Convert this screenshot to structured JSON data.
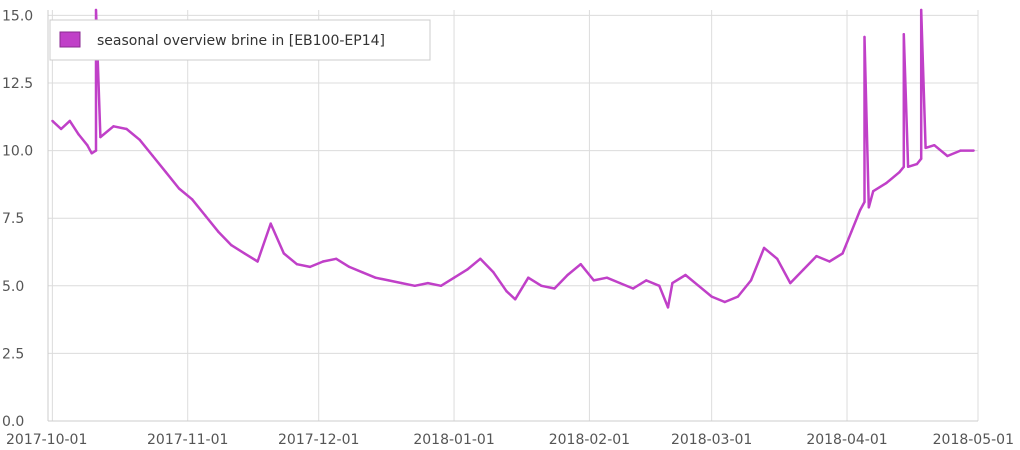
{
  "chart_data": {
    "type": "line",
    "series": [
      {
        "name": "seasonal overview brine in [EB100-EP14]",
        "color": "#c040c8",
        "x": [
          "2017-10-01",
          "2017-10-03",
          "2017-10-05",
          "2017-10-07",
          "2017-10-09",
          "2017-10-10",
          "2017-10-11",
          "2017-10-11",
          "2017-10-12",
          "2017-10-15",
          "2017-10-18",
          "2017-10-21",
          "2017-10-24",
          "2017-10-27",
          "2017-10-30",
          "2017-11-02",
          "2017-11-05",
          "2017-11-08",
          "2017-11-11",
          "2017-11-14",
          "2017-11-17",
          "2017-11-20",
          "2017-11-23",
          "2017-11-26",
          "2017-11-29",
          "2017-12-02",
          "2017-12-05",
          "2017-12-08",
          "2017-12-11",
          "2017-12-14",
          "2017-12-17",
          "2017-12-20",
          "2017-12-23",
          "2017-12-26",
          "2017-12-29",
          "2018-01-01",
          "2018-01-04",
          "2018-01-07",
          "2018-01-10",
          "2018-01-13",
          "2018-01-15",
          "2018-01-18",
          "2018-01-21",
          "2018-01-24",
          "2018-01-27",
          "2018-01-30",
          "2018-02-02",
          "2018-02-05",
          "2018-02-08",
          "2018-02-11",
          "2018-02-14",
          "2018-02-17",
          "2018-02-19",
          "2018-02-20",
          "2018-02-23",
          "2018-02-26",
          "2018-03-01",
          "2018-03-04",
          "2018-03-07",
          "2018-03-10",
          "2018-03-13",
          "2018-03-16",
          "2018-03-19",
          "2018-03-22",
          "2018-03-25",
          "2018-03-28",
          "2018-03-31",
          "2018-04-02",
          "2018-04-04",
          "2018-04-05",
          "2018-04-05",
          "2018-04-06",
          "2018-04-07",
          "2018-04-10",
          "2018-04-13",
          "2018-04-14",
          "2018-04-14",
          "2018-04-15",
          "2018-04-17",
          "2018-04-18",
          "2018-04-18",
          "2018-04-19",
          "2018-04-21",
          "2018-04-24",
          "2018-04-27",
          "2018-04-30"
        ],
        "y": [
          11.1,
          10.8,
          11.1,
          10.6,
          10.2,
          9.9,
          10.0,
          15.3,
          10.5,
          10.9,
          10.8,
          10.4,
          9.8,
          9.2,
          8.6,
          8.2,
          7.6,
          7.0,
          6.5,
          6.2,
          5.9,
          7.3,
          6.2,
          5.8,
          5.7,
          5.9,
          6.0,
          5.7,
          5.5,
          5.3,
          5.2,
          5.1,
          5.0,
          5.1,
          5.0,
          5.3,
          5.6,
          6.0,
          5.5,
          4.8,
          4.5,
          5.3,
          5.0,
          4.9,
          5.4,
          5.8,
          5.2,
          5.3,
          5.1,
          4.9,
          5.2,
          5.0,
          4.2,
          5.1,
          5.4,
          5.0,
          4.6,
          4.4,
          4.6,
          5.2,
          6.4,
          6.0,
          5.1,
          5.6,
          6.1,
          5.9,
          6.2,
          7.0,
          7.8,
          8.1,
          14.2,
          7.9,
          8.5,
          8.8,
          9.2,
          9.4,
          14.3,
          9.4,
          9.5,
          9.7,
          15.3,
          10.1,
          10.2,
          9.8,
          10.0,
          10.0
        ]
      }
    ],
    "x_ticks": [
      "2017-10-01",
      "2017-11-01",
      "2017-12-01",
      "2018-01-01",
      "2018-02-01",
      "2018-03-01",
      "2018-04-01",
      "2018-05-01"
    ],
    "y_ticks": [
      "0.0",
      "2.5",
      "5.0",
      "7.5",
      "10.0",
      "12.5",
      "15.0"
    ],
    "xlim": [
      "2017-09-30",
      "2018-05-01"
    ],
    "ylim": [
      0,
      15.2
    ],
    "title": "",
    "xlabel": "",
    "ylabel": "",
    "grid": true,
    "legend_position": "top-left"
  }
}
